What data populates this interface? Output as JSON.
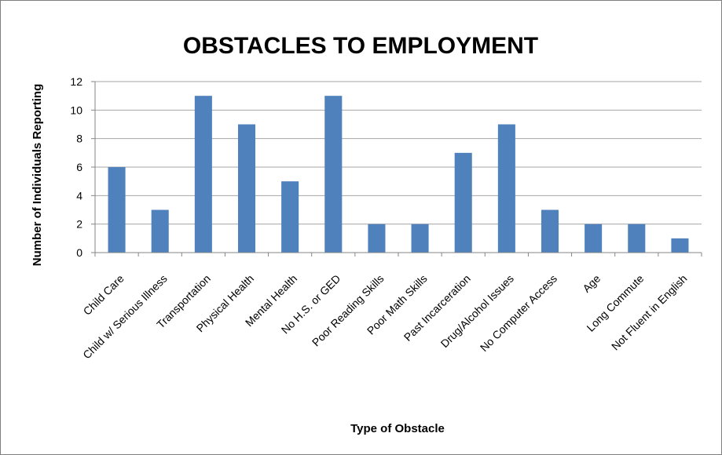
{
  "chart_data": {
    "type": "bar",
    "title": "OBSTACLES TO EMPLOYMENT",
    "xlabel": "Type of Obstacle",
    "ylabel": "Number of Individuals Reporting",
    "categories": [
      "Child Care",
      "Child w/ Serious Illness",
      "Transportation",
      "Physical Health",
      "Mental Health",
      "No H.S. or GED",
      "Poor Reading Skills",
      "Poor Math Skills",
      "Past Incarceration",
      "Drug/Alcohol Issues",
      "No Computer Access",
      "Age",
      "Long Commute",
      "Not Fluent in English"
    ],
    "values": [
      6,
      3,
      11,
      9,
      5,
      11,
      2,
      2,
      7,
      9,
      3,
      2,
      2,
      1
    ],
    "ylim": [
      0,
      12
    ],
    "yticks": [
      "0",
      "2",
      "4",
      "6",
      "8",
      "10",
      "12"
    ],
    "grid": true,
    "legend": "none",
    "bar_color": "#4f81bd",
    "grid_color": "#a6a6a6"
  }
}
